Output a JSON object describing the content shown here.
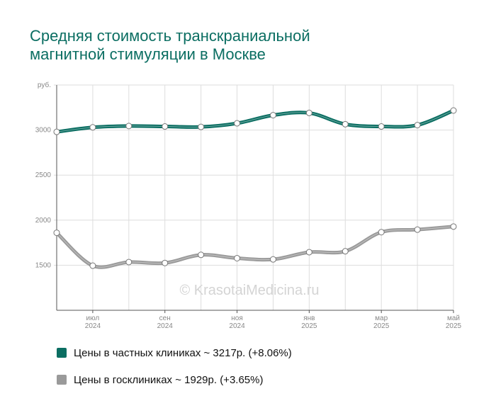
{
  "chart_data": {
    "type": "line",
    "title": "Средняя стоимость транскраниальной магнитной стимуляции в Москве",
    "watermark": "© KrasotaiMedicina.ru",
    "categories": [
      null,
      [
        "июл",
        "2024"
      ],
      null,
      [
        "сен",
        "2024"
      ],
      null,
      [
        "ноя",
        "2024"
      ],
      null,
      [
        "янв",
        "2025"
      ],
      null,
      [
        "мар",
        "2025"
      ],
      null,
      [
        "май",
        "2025"
      ]
    ],
    "series": [
      {
        "name": "Цены в частных клиниках ~ 3217р. (+8.06%)",
        "color": "#0b6e62",
        "values": [
          2980,
          3030,
          3045,
          3040,
          3035,
          3075,
          3165,
          3190,
          3065,
          3040,
          3055,
          3217
        ]
      },
      {
        "name": "Цены в госклиниках ~ 1929р. (+3.65%)",
        "color": "#9a9a9a",
        "values": [
          1860,
          1495,
          1535,
          1525,
          1615,
          1578,
          1565,
          1645,
          1655,
          1867,
          1895,
          1929
        ]
      }
    ],
    "ylim": [
      1000,
      3500
    ],
    "yticks": [
      {
        "value": 3500,
        "label": "руб."
      },
      3000,
      2500,
      2000,
      1500
    ],
    "grid": true
  }
}
